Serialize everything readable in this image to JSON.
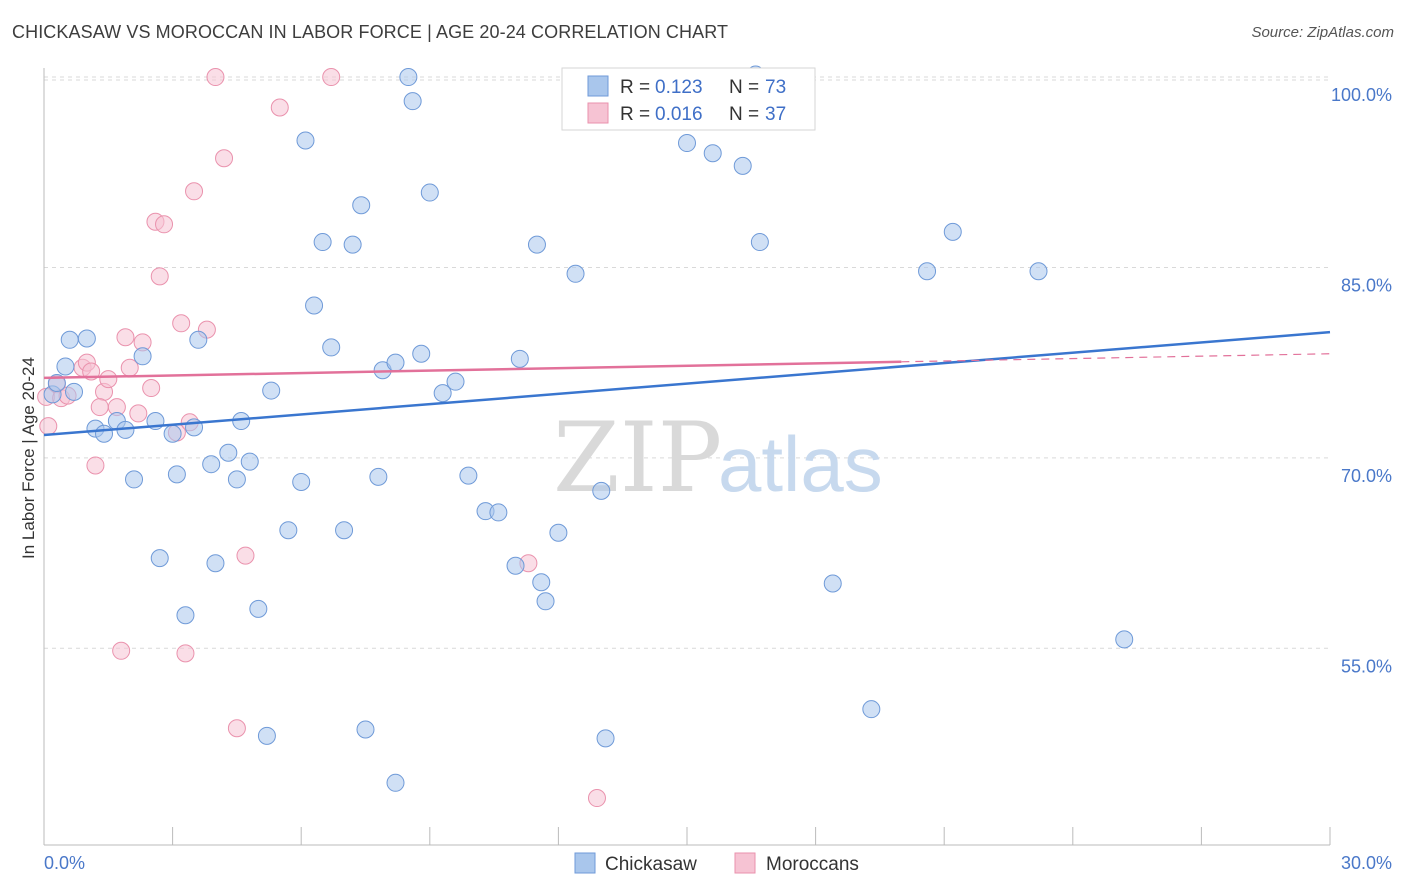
{
  "title": "CHICKASAW VS MOROCCAN IN LABOR FORCE | AGE 20-24 CORRELATION CHART",
  "source": "Source: ZipAtlas.com",
  "watermark": {
    "zip": "ZIP",
    "atlas": "atlas"
  },
  "colors": {
    "chickasaw_fill": "#a9c6ec",
    "chickasaw_stroke": "#6f9ad8",
    "chickasaw_line": "#3a76cf",
    "moroccan_fill": "#f6c3d3",
    "moroccan_stroke": "#ea92ad",
    "moroccan_line": "#e2719a",
    "grid": "#d9d9d9",
    "tick_label": "#4a78c9"
  },
  "legend": {
    "rows": [
      {
        "r_label": "R =",
        "r_value": "0.123",
        "n_label": "N =",
        "n_value": "73"
      },
      {
        "r_label": "R =",
        "r_value": "0.016",
        "n_label": "N =",
        "n_value": "37"
      }
    ]
  },
  "bottom_legend": [
    "Chickasaw",
    "Moroccans"
  ],
  "chart_data": {
    "type": "scatter",
    "title": "CHICKASAW VS MOROCCAN IN LABOR FORCE | AGE 20-24 CORRELATION CHART",
    "xlabel": "",
    "ylabel": "In Labor Force | Age 20-24",
    "xlim": [
      0,
      30
    ],
    "ylim": [
      39.5,
      101.5
    ],
    "x_tick_labels": [
      "0.0%",
      "30.0%"
    ],
    "y_ticks": [
      100,
      85,
      70,
      55
    ],
    "y_tick_labels": [
      "100.0%",
      "85.0%",
      "70.0%",
      "55.0%"
    ],
    "grid": true,
    "legend_placement": "top-center",
    "series": [
      {
        "name": "Chickasaw",
        "r": 0.123,
        "n": 73,
        "trend": {
          "x": [
            0,
            30
          ],
          "y": [
            71.8,
            79.9
          ],
          "dashed_from": null
        },
        "points": [
          [
            0.2,
            75.0
          ],
          [
            0.3,
            75.9
          ],
          [
            0.5,
            77.2
          ],
          [
            0.6,
            79.3
          ],
          [
            0.7,
            75.2
          ],
          [
            1.0,
            79.4
          ],
          [
            1.2,
            72.3
          ],
          [
            1.4,
            71.9
          ],
          [
            1.7,
            72.9
          ],
          [
            1.9,
            72.2
          ],
          [
            2.1,
            68.3
          ],
          [
            2.3,
            78.0
          ],
          [
            2.6,
            72.9
          ],
          [
            2.7,
            62.1
          ],
          [
            3.0,
            71.9
          ],
          [
            3.1,
            68.7
          ],
          [
            3.3,
            57.6
          ],
          [
            3.5,
            72.4
          ],
          [
            3.6,
            79.3
          ],
          [
            3.9,
            69.5
          ],
          [
            4.0,
            61.7
          ],
          [
            4.3,
            70.4
          ],
          [
            4.5,
            68.3
          ],
          [
            4.6,
            72.9
          ],
          [
            4.8,
            69.7
          ],
          [
            5.0,
            58.1
          ],
          [
            5.2,
            48.1
          ],
          [
            5.3,
            75.3
          ],
          [
            5.7,
            64.3
          ],
          [
            6.0,
            68.1
          ],
          [
            6.1,
            95.0
          ],
          [
            6.3,
            82.0
          ],
          [
            6.5,
            87.0
          ],
          [
            6.7,
            78.7
          ],
          [
            7.0,
            64.3
          ],
          [
            7.2,
            86.8
          ],
          [
            7.4,
            89.9
          ],
          [
            7.5,
            48.6
          ],
          [
            7.8,
            68.5
          ],
          [
            7.9,
            76.9
          ],
          [
            8.2,
            77.5
          ],
          [
            8.2,
            44.4
          ],
          [
            8.5,
            100.0
          ],
          [
            8.6,
            98.1
          ],
          [
            8.8,
            78.2
          ],
          [
            9.0,
            90.9
          ],
          [
            9.3,
            75.1
          ],
          [
            9.6,
            76.0
          ],
          [
            9.9,
            68.6
          ],
          [
            10.3,
            65.8
          ],
          [
            10.6,
            65.7
          ],
          [
            11.0,
            61.5
          ],
          [
            11.1,
            77.8
          ],
          [
            11.5,
            86.8
          ],
          [
            11.6,
            60.2
          ],
          [
            11.7,
            58.7
          ],
          [
            12.0,
            64.1
          ],
          [
            12.4,
            84.5
          ],
          [
            13.0,
            67.4
          ],
          [
            13.1,
            47.9
          ],
          [
            15.0,
            94.8
          ],
          [
            15.6,
            94.0
          ],
          [
            16.0,
            98.9
          ],
          [
            16.3,
            93.0
          ],
          [
            16.6,
            100.2
          ],
          [
            16.7,
            87.0
          ],
          [
            18.4,
            60.1
          ],
          [
            19.3,
            50.2
          ],
          [
            20.6,
            84.7
          ],
          [
            21.2,
            87.8
          ],
          [
            23.2,
            84.7
          ],
          [
            25.2,
            55.7
          ],
          [
            13.4,
            100.0
          ]
        ]
      },
      {
        "name": "Moroccans",
        "r": 0.016,
        "n": 37,
        "trend": {
          "x": [
            0,
            30
          ],
          "y": [
            76.3,
            78.2
          ],
          "dashed_from": 20.0
        },
        "points": [
          [
            0.05,
            74.8
          ],
          [
            0.1,
            72.5
          ],
          [
            0.3,
            75.8
          ],
          [
            0.4,
            74.7
          ],
          [
            0.55,
            74.9
          ],
          [
            0.9,
            77.1
          ],
          [
            1.0,
            77.5
          ],
          [
            1.1,
            76.8
          ],
          [
            1.2,
            69.4
          ],
          [
            1.4,
            75.2
          ],
          [
            1.3,
            74.0
          ],
          [
            1.5,
            76.2
          ],
          [
            1.7,
            74.0
          ],
          [
            1.8,
            54.8
          ],
          [
            1.9,
            79.5
          ],
          [
            2.0,
            77.1
          ],
          [
            2.2,
            73.5
          ],
          [
            2.3,
            79.1
          ],
          [
            2.5,
            75.5
          ],
          [
            2.6,
            88.6
          ],
          [
            2.7,
            84.3
          ],
          [
            2.8,
            88.4
          ],
          [
            3.1,
            72.0
          ],
          [
            3.2,
            80.6
          ],
          [
            3.3,
            54.6
          ],
          [
            3.4,
            72.8
          ],
          [
            3.5,
            91.0
          ],
          [
            3.8,
            80.1
          ],
          [
            4.0,
            100.0
          ],
          [
            4.2,
            93.6
          ],
          [
            4.5,
            48.7
          ],
          [
            4.7,
            62.3
          ],
          [
            5.5,
            97.6
          ],
          [
            6.7,
            100.0
          ],
          [
            11.3,
            61.7
          ],
          [
            12.9,
            43.2
          ],
          [
            16.5,
            100.0
          ]
        ]
      }
    ]
  }
}
